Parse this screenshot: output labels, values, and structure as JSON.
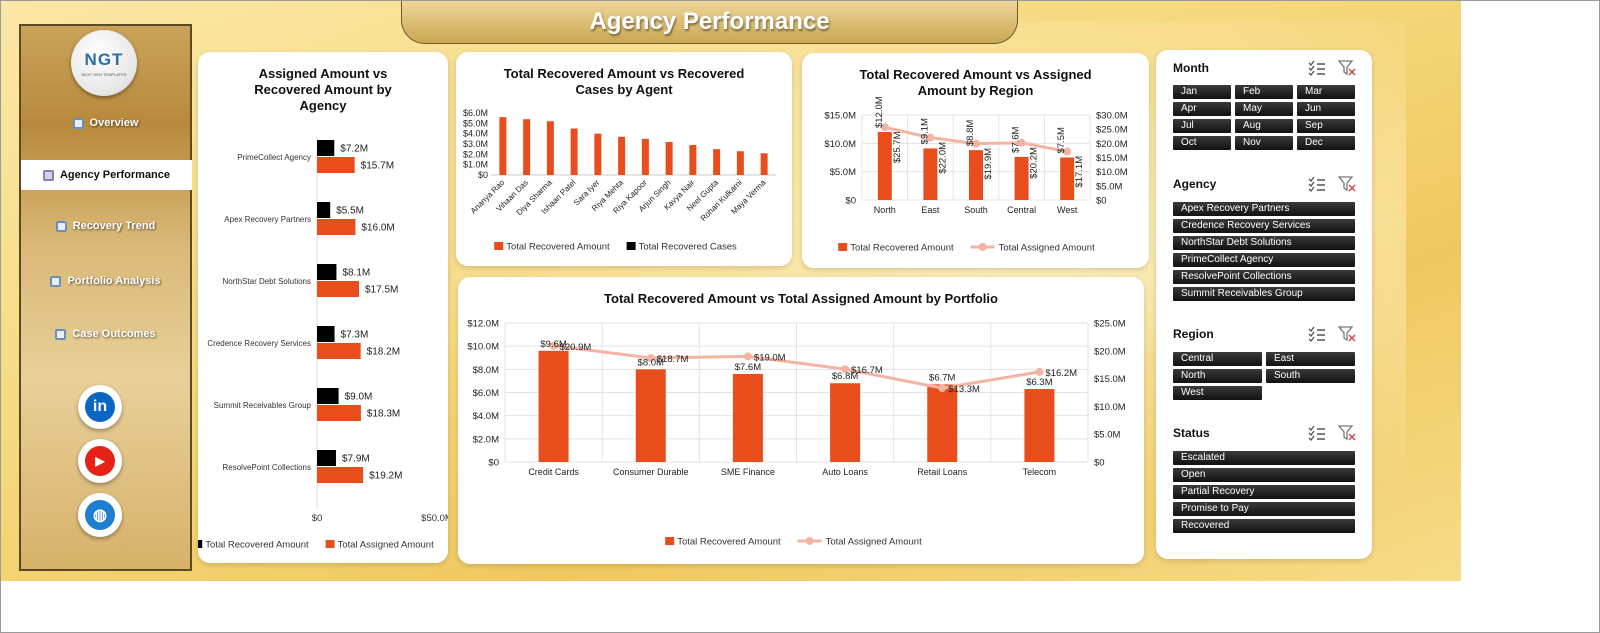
{
  "app": {
    "title": "Agency Performance"
  },
  "logo": {
    "text": "NGT",
    "subtext": "NEXT GEN TEMPLATES"
  },
  "nav": [
    {
      "label": "Overview",
      "active": false
    },
    {
      "label": "Agency Performance",
      "active": true
    },
    {
      "label": "Recovery Trend",
      "active": false
    },
    {
      "label": "Portfolio Analysis",
      "active": false
    },
    {
      "label": "Case Outcomes",
      "active": false
    }
  ],
  "social": [
    {
      "name": "linkedin-icon",
      "glyph": "in",
      "color": "#0a66c2"
    },
    {
      "name": "youtube-icon",
      "glyph": "▶",
      "color": "#e62117"
    },
    {
      "name": "globe-icon",
      "glyph": "◍",
      "color": "#1e7fd0"
    }
  ],
  "colors": {
    "orange": "#e84e1c",
    "black": "#000000",
    "line": "#f3b4a3"
  },
  "chart_data": [
    {
      "id": "agency",
      "type": "bar",
      "orientation": "horizontal",
      "title": "Assigned Amount vs Recovered Amount by Agency",
      "categories": [
        "PrimeCollect Agency",
        "Apex Recovery Partners",
        "NorthStar Debt Solutions",
        "Credence Recovery Services",
        "Summit Receivables Group",
        "ResolvePoint Collections"
      ],
      "series": [
        {
          "name": "Total Recovered Amount",
          "values": [
            7.2,
            5.5,
            8.1,
            7.3,
            9.0,
            7.9
          ],
          "labels": [
            "$7.2M",
            "$5.5M",
            "$8.1M",
            "$7.3M",
            "$9.0M",
            "$7.9M"
          ],
          "color": "#000000"
        },
        {
          "name": "Total Assigned Amount",
          "values": [
            15.7,
            16.0,
            17.5,
            18.2,
            18.3,
            19.2
          ],
          "labels": [
            "$15.7M",
            "$16.0M",
            "$17.5M",
            "$18.2M",
            "$18.3M",
            "$19.2M"
          ],
          "color": "#e84e1c"
        }
      ],
      "xlim": [
        0,
        50
      ],
      "xticks": [
        "$0",
        "$50.0M"
      ],
      "legend": "bottom"
    },
    {
      "id": "agent",
      "type": "bar",
      "title": "Total Recovered Amount vs Recovered Cases by Agent",
      "categories": [
        "Ananya Rao",
        "Vihaan Das",
        "Diya Sharma",
        "Ishaan Patel",
        "Sara Iyer",
        "Riya Mehta",
        "Riya Kapoor",
        "Arjun Singh",
        "Kavya Nair",
        "Neel Gupta",
        "Rohan Kulkarni",
        "Maya Verma"
      ],
      "series": [
        {
          "name": "Total Recovered Amount",
          "values": [
            5.6,
            5.4,
            5.2,
            4.5,
            4.0,
            3.7,
            3.5,
            3.2,
            2.9,
            2.5,
            2.3,
            2.1
          ],
          "color": "#e84e1c"
        },
        {
          "name": "Total Recovered Cases",
          "values": [
            0,
            0,
            0,
            0,
            0,
            0,
            0,
            0,
            0,
            0,
            0,
            0
          ],
          "color": "#000000"
        }
      ],
      "ylim": [
        0,
        6
      ],
      "yticks": [
        "$0",
        "$1.0M",
        "$2.0M",
        "$3.0M",
        "$4.0M",
        "$5.0M",
        "$6.0M"
      ],
      "legend": "bottom"
    },
    {
      "id": "region",
      "type": "bar",
      "title": "Total Recovered Amount vs Assigned Amount by Region",
      "categories": [
        "North",
        "East",
        "South",
        "Central",
        "West"
      ],
      "series": [
        {
          "name": "Total Recovered Amount",
          "values": [
            12.0,
            9.1,
            8.8,
            7.6,
            7.5
          ],
          "labels": [
            "$12.0M",
            "$9.1M",
            "$8.8M",
            "$7.6M",
            "$7.5M"
          ],
          "color": "#e84e1c",
          "axis": "left"
        },
        {
          "name": "Total Assigned Amount",
          "type": "line",
          "values": [
            25.7,
            22.0,
            19.9,
            20.2,
            17.1
          ],
          "labels": [
            "$25.7M",
            "$22.0M",
            "$19.9M",
            "$20.2M",
            "$17.1M"
          ],
          "color": "#f3b4a3",
          "axis": "right"
        }
      ],
      "ylim": [
        0,
        15
      ],
      "yticks": [
        "$0",
        "$5.0M",
        "$10.0M",
        "$15.0M"
      ],
      "y2lim": [
        0,
        30
      ],
      "y2ticks": [
        "$0",
        "$5.0M",
        "$10.0M",
        "$15.0M",
        "$20.0M",
        "$25.0M",
        "$30.0M"
      ],
      "legend": "bottom"
    },
    {
      "id": "portfolio",
      "type": "bar",
      "title": "Total Recovered Amount vs Total Assigned Amount by Portfolio",
      "categories": [
        "Credit Cards",
        "Consumer Durable",
        "SME Finance",
        "Auto Loans",
        "Retail Loans",
        "Telecom"
      ],
      "series": [
        {
          "name": "Total Recovered Amount",
          "values": [
            9.6,
            8.0,
            7.6,
            6.8,
            6.7,
            6.3
          ],
          "labels": [
            "$9.6M",
            "$8.0M",
            "$7.6M",
            "$6.8M",
            "$6.7M",
            "$6.3M"
          ],
          "color": "#e84e1c",
          "axis": "left"
        },
        {
          "name": "Total Assigned Amount",
          "type": "line",
          "values": [
            20.9,
            18.7,
            19.0,
            16.7,
            13.3,
            16.2
          ],
          "labels": [
            "$20.9M",
            "$18.7M",
            "$19.0M",
            "$16.7M",
            "$13.3M",
            "$16.2M"
          ],
          "color": "#f3b4a3",
          "axis": "right"
        }
      ],
      "ylim": [
        0,
        12
      ],
      "yticks": [
        "$0",
        "$2.0M",
        "$4.0M",
        "$6.0M",
        "$8.0M",
        "$10.0M",
        "$12.0M"
      ],
      "y2lim": [
        0,
        25
      ],
      "y2ticks": [
        "$0",
        "$5.0M",
        "$10.0M",
        "$15.0M",
        "$20.0M",
        "$25.0M"
      ],
      "legend": "bottom"
    }
  ],
  "slicers": [
    {
      "id": "month",
      "title": "Month",
      "items": [
        "Jan",
        "Feb",
        "Mar",
        "Apr",
        "May",
        "Jun",
        "Jul",
        "Aug",
        "Sep",
        "Oct",
        "Nov",
        "Dec"
      ]
    },
    {
      "id": "agency",
      "title": "Agency",
      "items": [
        "Apex Recovery Partners",
        "Credence Recovery Services",
        "NorthStar Debt Solutions",
        "PrimeCollect Agency",
        "ResolvePoint Collections",
        "Summit Receivables Group"
      ]
    },
    {
      "id": "region",
      "title": "Region",
      "items": [
        "Central",
        "East",
        "North",
        "South",
        "West"
      ]
    },
    {
      "id": "status",
      "title": "Status",
      "items": [
        "Escalated",
        "Open",
        "Partial Recovery",
        "Promise to Pay",
        "Recovered"
      ]
    }
  ]
}
